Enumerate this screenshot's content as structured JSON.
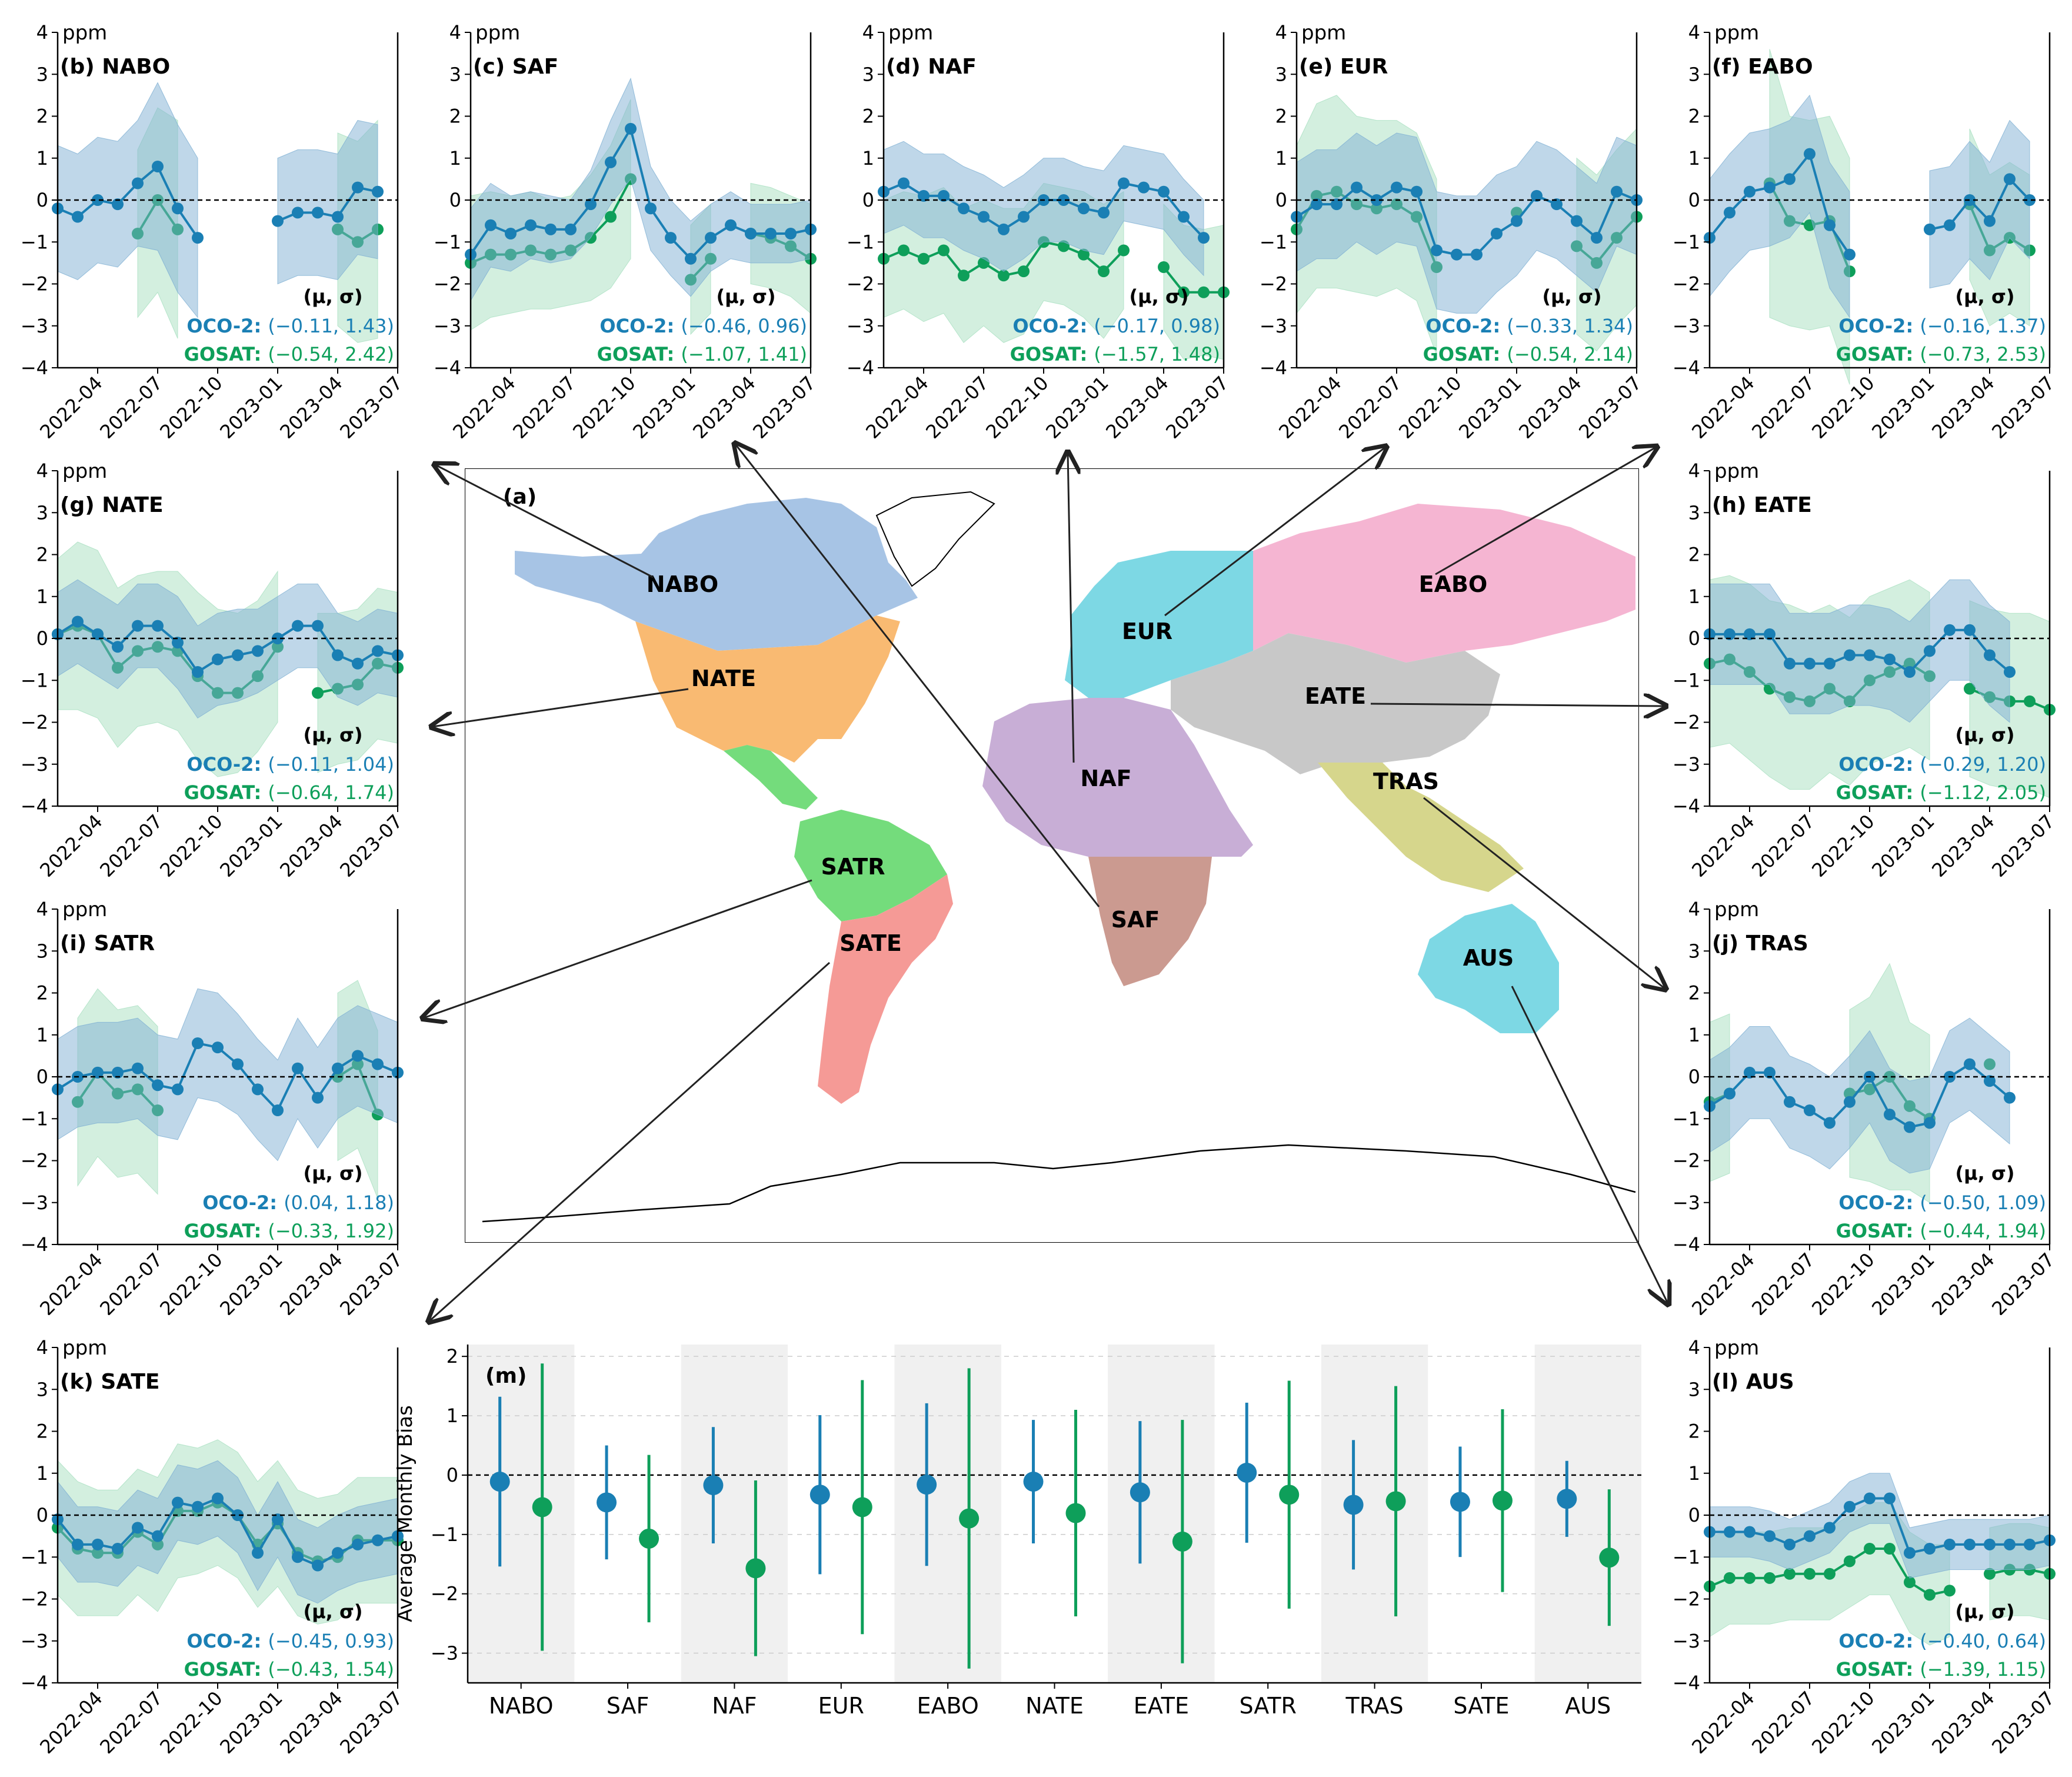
{
  "chart_data": {
    "type": "multi-panel",
    "colors": {
      "oco2": "#1a7fb4",
      "gosat": "#0e9f5a",
      "oco2_band": "#7fb0d3",
      "gosat_band": "#a8e0c0"
    },
    "time_axis": {
      "ticks": [
        "2022-04",
        "2022-07",
        "2022-10",
        "2023-01",
        "2023-04",
        "2023-07"
      ],
      "months": [
        "2022-02",
        "2022-03",
        "2022-04",
        "2022-05",
        "2022-06",
        "2022-07",
        "2022-08",
        "2022-09",
        "2022-10",
        "2022-11",
        "2022-12",
        "2023-01",
        "2023-02",
        "2023-03",
        "2023-04",
        "2023-05",
        "2023-06",
        "2023-07"
      ]
    },
    "y_unit": "ppm",
    "ylim": [
      -4,
      4
    ],
    "yticks": [
      -4,
      -3,
      -2,
      -1,
      0,
      1,
      2,
      3,
      4
    ],
    "stats_header": "(μ, σ)",
    "oco2_label": "OCO-2:",
    "gosat_label": "GOSAT:",
    "panels": [
      {
        "id": "b",
        "title": "(b) NABO",
        "oco_stat": "(−0.11, 1.43)",
        "gosat_stat": "(−0.54, 2.42)",
        "oco2": [
          -0.2,
          -0.4,
          0.0,
          -0.1,
          0.4,
          0.8,
          -0.2,
          -0.9,
          null,
          null,
          null,
          -0.5,
          -0.3,
          -0.3,
          -0.4,
          0.3,
          0.2,
          null
        ],
        "oco2_sd": [
          1.5,
          1.5,
          1.5,
          1.5,
          1.5,
          2.0,
          2.0,
          1.9,
          null,
          null,
          null,
          1.5,
          1.5,
          1.5,
          1.5,
          1.6,
          1.6,
          null
        ],
        "gosat": [
          null,
          null,
          null,
          null,
          -0.8,
          0.0,
          -0.7,
          null,
          null,
          null,
          null,
          null,
          null,
          null,
          -0.7,
          -1.0,
          -0.7,
          null
        ],
        "gosat_sd": [
          null,
          null,
          null,
          null,
          2.0,
          2.2,
          2.6,
          null,
          null,
          null,
          null,
          null,
          null,
          null,
          2.3,
          2.4,
          2.6,
          null
        ]
      },
      {
        "id": "c",
        "title": "(c) SAF",
        "oco_stat": "(−0.46, 0.96)",
        "gosat_stat": "(−1.07, 1.41)",
        "oco2": [
          -1.3,
          -0.6,
          -0.8,
          -0.6,
          -0.7,
          -0.7,
          -0.1,
          0.9,
          1.7,
          -0.2,
          -0.9,
          -1.4,
          -0.9,
          -0.6,
          -0.8,
          -0.8,
          -0.8,
          -0.7
        ],
        "oco2_sd": [
          1.1,
          1.0,
          0.9,
          0.8,
          0.8,
          0.7,
          0.8,
          1.0,
          1.2,
          1.0,
          0.9,
          0.9,
          0.8,
          0.8,
          0.7,
          0.7,
          0.7,
          0.7
        ],
        "gosat": [
          -1.5,
          -1.3,
          -1.3,
          -1.2,
          -1.3,
          -1.2,
          -0.9,
          -0.4,
          0.5,
          null,
          null,
          -1.9,
          -1.4,
          null,
          -0.8,
          -0.9,
          -1.1,
          -1.4
        ],
        "gosat_sd": [
          1.6,
          1.5,
          1.4,
          1.4,
          1.3,
          1.3,
          1.5,
          1.7,
          1.9,
          null,
          null,
          1.3,
          1.3,
          null,
          1.2,
          1.2,
          1.2,
          1.3
        ]
      },
      {
        "id": "d",
        "title": "(d) NAF",
        "oco_stat": "(−0.17, 0.98)",
        "gosat_stat": "(−1.57, 1.48)",
        "oco2": [
          0.2,
          0.4,
          0.1,
          0.1,
          -0.2,
          -0.4,
          -0.7,
          -0.4,
          0.0,
          0.0,
          -0.2,
          -0.3,
          0.4,
          0.3,
          0.2,
          -0.4,
          -0.9,
          null
        ],
        "oco2_sd": [
          1.0,
          1.0,
          1.0,
          1.0,
          1.0,
          1.0,
          1.0,
          1.0,
          1.0,
          1.0,
          1.0,
          1.0,
          0.9,
          0.9,
          0.9,
          0.9,
          0.9,
          null
        ],
        "gosat": [
          -1.4,
          -1.2,
          -1.4,
          -1.2,
          -1.8,
          -1.5,
          -1.8,
          -1.7,
          -1.0,
          -1.1,
          -1.3,
          -1.7,
          -1.2,
          null,
          -1.6,
          -2.2,
          -2.2,
          -2.2
        ],
        "gosat_sd": [
          1.4,
          1.4,
          1.5,
          1.5,
          1.6,
          1.5,
          1.6,
          1.5,
          1.4,
          1.4,
          1.5,
          1.6,
          1.4,
          null,
          1.5,
          1.6,
          1.5,
          1.6
        ]
      },
      {
        "id": "e",
        "title": "(e) EUR",
        "oco_stat": "(−0.33, 1.34)",
        "gosat_stat": "(−0.54, 2.14)",
        "oco2": [
          -0.4,
          -0.1,
          -0.1,
          0.3,
          0.0,
          0.3,
          0.2,
          -1.2,
          -1.3,
          -1.3,
          -0.8,
          -0.5,
          0.1,
          -0.1,
          -0.5,
          -0.9,
          0.2,
          0.0
        ],
        "oco2_sd": [
          1.3,
          1.3,
          1.3,
          1.3,
          1.3,
          1.3,
          1.3,
          1.4,
          1.4,
          1.4,
          1.4,
          1.3,
          1.3,
          1.3,
          1.3,
          1.3,
          1.3,
          1.3
        ],
        "gosat": [
          -0.7,
          0.1,
          0.2,
          -0.1,
          -0.2,
          -0.1,
          -0.4,
          -1.6,
          null,
          null,
          null,
          -0.3,
          null,
          null,
          -1.1,
          -1.5,
          -0.9,
          -0.4
        ],
        "gosat_sd": [
          2.0,
          2.2,
          2.3,
          2.1,
          2.1,
          2.0,
          2.0,
          2.1,
          null,
          null,
          null,
          2.5,
          null,
          null,
          2.1,
          2.1,
          2.1,
          2.1
        ]
      },
      {
        "id": "f",
        "title": "(f) EABO",
        "oco_stat": "(−0.16, 1.37)",
        "gosat_stat": "(−0.73, 2.53)",
        "oco2": [
          -0.9,
          -0.3,
          0.2,
          0.3,
          0.5,
          1.1,
          -0.6,
          -1.3,
          null,
          null,
          null,
          -0.7,
          -0.6,
          0.0,
          -0.5,
          0.5,
          0.0,
          null
        ],
        "oco2_sd": [
          1.4,
          1.4,
          1.4,
          1.4,
          1.4,
          1.4,
          1.5,
          1.5,
          null,
          null,
          null,
          1.4,
          1.4,
          1.4,
          1.4,
          1.4,
          1.4,
          null
        ],
        "gosat": [
          null,
          null,
          null,
          0.4,
          -0.5,
          -0.6,
          -0.5,
          -1.7,
          null,
          null,
          null,
          null,
          null,
          -0.1,
          -1.2,
          -0.9,
          -1.2,
          null
        ],
        "gosat_sd": [
          null,
          null,
          null,
          3.2,
          2.5,
          2.5,
          2.5,
          2.7,
          null,
          null,
          null,
          null,
          null,
          1.8,
          1.8,
          1.8,
          1.8,
          null
        ]
      },
      {
        "id": "g",
        "title": "(g) NATE",
        "oco_stat": "(−0.11, 1.04)",
        "gosat_stat": "(−0.64, 1.74)",
        "oco2": [
          0.1,
          0.4,
          0.1,
          -0.2,
          0.3,
          0.3,
          -0.1,
          -0.8,
          -0.5,
          -0.4,
          -0.3,
          0.0,
          0.3,
          0.3,
          -0.4,
          -0.6,
          -0.3,
          -0.4
        ],
        "oco2_sd": [
          1.0,
          1.0,
          1.0,
          1.0,
          1.0,
          1.0,
          1.1,
          1.1,
          1.1,
          1.1,
          1.0,
          1.0,
          1.0,
          1.0,
          1.0,
          1.0,
          1.0,
          1.0
        ],
        "gosat": [
          0.1,
          0.3,
          0.1,
          -0.7,
          -0.3,
          -0.2,
          -0.3,
          -0.9,
          -1.3,
          -1.3,
          -0.9,
          -0.2,
          null,
          -1.3,
          -1.2,
          -1.1,
          -0.6,
          -0.7
        ],
        "gosat_sd": [
          1.8,
          2.0,
          2.0,
          1.9,
          1.8,
          1.8,
          1.9,
          2.0,
          2.0,
          1.9,
          1.8,
          1.8,
          null,
          1.9,
          1.8,
          1.8,
          1.8,
          1.8
        ]
      },
      {
        "id": "h",
        "title": "(h) EATE",
        "oco_stat": "(−0.29, 1.20)",
        "gosat_stat": "(−1.12, 2.05)",
        "oco2": [
          0.1,
          0.1,
          0.1,
          0.1,
          -0.6,
          -0.6,
          -0.6,
          -0.4,
          -0.4,
          -0.5,
          -0.8,
          -0.3,
          0.2,
          0.2,
          -0.4,
          -0.8,
          null,
          null
        ],
        "oco2_sd": [
          1.2,
          1.2,
          1.2,
          1.2,
          1.2,
          1.2,
          1.2,
          1.2,
          1.2,
          1.2,
          1.2,
          1.2,
          1.2,
          1.2,
          1.2,
          1.2,
          null,
          null
        ],
        "gosat": [
          -0.6,
          -0.5,
          -0.8,
          -1.2,
          -1.4,
          -1.5,
          -1.2,
          -1.5,
          -1.0,
          -0.8,
          -0.6,
          -0.9,
          null,
          -1.2,
          -1.4,
          -1.5,
          -1.5,
          -1.7
        ],
        "gosat_sd": [
          2.0,
          2.0,
          2.1,
          2.1,
          2.2,
          2.1,
          2.0,
          2.0,
          2.0,
          2.0,
          2.0,
          2.0,
          null,
          2.1,
          2.1,
          2.1,
          2.1,
          2.1
        ]
      },
      {
        "id": "i",
        "title": "(i) SATR",
        "oco_stat": "(0.04, 1.18)",
        "gosat_stat": "(−0.33, 1.92)",
        "oco2": [
          -0.3,
          0.0,
          0.1,
          0.1,
          0.2,
          -0.2,
          -0.3,
          0.8,
          0.7,
          0.3,
          -0.3,
          -0.8,
          0.2,
          -0.5,
          0.2,
          0.5,
          0.3,
          0.1
        ],
        "oco2_sd": [
          1.2,
          1.2,
          1.2,
          1.2,
          1.2,
          1.2,
          1.2,
          1.3,
          1.3,
          1.2,
          1.2,
          1.2,
          1.2,
          1.2,
          1.2,
          1.2,
          1.2,
          1.2
        ],
        "gosat": [
          null,
          -0.6,
          0.1,
          -0.4,
          -0.3,
          -0.8,
          null,
          null,
          null,
          null,
          null,
          null,
          null,
          null,
          0.0,
          0.3,
          -0.9,
          null
        ],
        "gosat_sd": [
          null,
          2.0,
          2.0,
          2.0,
          2.0,
          2.0,
          null,
          null,
          null,
          null,
          null,
          null,
          null,
          null,
          2.0,
          2.0,
          2.0,
          null
        ]
      },
      {
        "id": "j",
        "title": "(j) TRAS",
        "oco_stat": "(−0.50, 1.09)",
        "gosat_stat": "(−0.44, 1.94)",
        "oco2": [
          -0.7,
          -0.4,
          0.1,
          0.1,
          -0.6,
          -0.8,
          -1.1,
          -0.6,
          0.0,
          -0.9,
          -1.2,
          -1.1,
          0.0,
          0.3,
          -0.1,
          -0.5,
          null,
          null
        ],
        "oco2_sd": [
          1.1,
          1.1,
          1.1,
          1.1,
          1.1,
          1.1,
          1.1,
          1.1,
          1.1,
          1.1,
          1.1,
          1.1,
          1.1,
          1.1,
          1.1,
          1.1,
          null,
          null
        ],
        "gosat": [
          -0.6,
          -0.4,
          null,
          null,
          null,
          null,
          null,
          -0.4,
          -0.3,
          0.0,
          -0.7,
          -1.0,
          null,
          null,
          0.3,
          null,
          null,
          null
        ],
        "gosat_sd": [
          1.9,
          1.9,
          null,
          null,
          null,
          null,
          null,
          2.0,
          2.2,
          2.7,
          2.0,
          2.0,
          null,
          null,
          1.9,
          null,
          null,
          null
        ]
      },
      {
        "id": "k",
        "title": "(k) SATE",
        "oco_stat": "(−0.45, 0.93)",
        "gosat_stat": "(−0.43, 1.54)",
        "oco2": [
          -0.1,
          -0.7,
          -0.7,
          -0.8,
          -0.3,
          -0.5,
          0.3,
          0.2,
          0.4,
          0.0,
          -0.9,
          -0.1,
          -1.0,
          -1.2,
          -0.9,
          -0.7,
          -0.6,
          -0.5
        ],
        "oco2_sd": [
          0.9,
          0.9,
          0.9,
          0.9,
          0.9,
          0.9,
          0.9,
          0.9,
          0.9,
          0.9,
          0.9,
          0.9,
          0.9,
          0.9,
          0.9,
          0.9,
          0.9,
          0.9
        ],
        "gosat": [
          -0.3,
          -0.8,
          -0.9,
          -0.9,
          -0.4,
          -0.7,
          0.1,
          0.1,
          0.3,
          0.0,
          -0.7,
          -0.2,
          -0.9,
          -1.1,
          -1.0,
          -0.6,
          -0.6,
          -0.6
        ],
        "gosat_sd": [
          1.6,
          1.6,
          1.5,
          1.5,
          1.5,
          1.6,
          1.6,
          1.5,
          1.5,
          1.5,
          1.5,
          1.5,
          1.5,
          1.5,
          1.5,
          1.5,
          1.5,
          1.5
        ]
      },
      {
        "id": "l",
        "title": "(l) AUS",
        "oco_stat": "(−0.40, 0.64)",
        "gosat_stat": "(−1.39, 1.15)",
        "oco2": [
          -0.4,
          -0.4,
          -0.4,
          -0.5,
          -0.7,
          -0.5,
          -0.3,
          0.2,
          0.4,
          0.4,
          -0.9,
          -0.8,
          -0.7,
          -0.7,
          -0.7,
          -0.7,
          -0.7,
          -0.6
        ],
        "oco2_sd": [
          0.6,
          0.6,
          0.6,
          0.6,
          0.6,
          0.6,
          0.6,
          0.6,
          0.6,
          0.6,
          0.6,
          0.6,
          0.6,
          0.6,
          0.6,
          0.6,
          0.6,
          0.6
        ],
        "gosat": [
          -1.7,
          -1.5,
          -1.5,
          -1.5,
          -1.4,
          -1.4,
          -1.4,
          -1.1,
          -0.8,
          -0.8,
          -1.6,
          -1.9,
          -1.8,
          null,
          -1.4,
          -1.3,
          -1.3,
          -1.4
        ],
        "gosat_sd": [
          1.2,
          1.1,
          1.1,
          1.1,
          1.1,
          1.1,
          1.1,
          1.1,
          1.1,
          1.1,
          1.2,
          1.2,
          1.1,
          null,
          1.1,
          1.1,
          1.1,
          1.1
        ]
      }
    ],
    "map": {
      "title": "(a)",
      "regions": [
        {
          "code": "NABO",
          "color": "#a7c4e5"
        },
        {
          "code": "NATE",
          "color": "#f9ba72"
        },
        {
          "code": "SATR",
          "color": "#74dc7c"
        },
        {
          "code": "SATE",
          "color": "#f59a96"
        },
        {
          "code": "EUR",
          "color": "#7dd8e4"
        },
        {
          "code": "NAF",
          "color": "#c8aed6"
        },
        {
          "code": "SAF",
          "color": "#cb9a90"
        },
        {
          "code": "EABO",
          "color": "#f5b5d2"
        },
        {
          "code": "EATE",
          "color": "#c8c8c8"
        },
        {
          "code": "TRAS",
          "color": "#d6d68c"
        },
        {
          "code": "AUS",
          "color": "#7dd8e4"
        }
      ]
    },
    "summary": {
      "title": "(m)",
      "ylabel": "Average Monthly Bias",
      "ylim": [
        -3.5,
        2.2
      ],
      "yticks": [
        -3,
        -2,
        -1,
        0,
        1,
        2
      ],
      "categories": [
        "NABO",
        "SAF",
        "NAF",
        "EUR",
        "EABO",
        "NATE",
        "EATE",
        "SATR",
        "TRAS",
        "SATE",
        "AUS"
      ],
      "series": [
        {
          "name": "OCO-2",
          "mean": [
            -0.11,
            -0.46,
            -0.17,
            -0.33,
            -0.16,
            -0.11,
            -0.29,
            0.04,
            -0.5,
            -0.45,
            -0.4
          ],
          "sd": [
            1.43,
            0.96,
            0.98,
            1.34,
            1.37,
            1.04,
            1.2,
            1.18,
            1.09,
            0.93,
            0.64
          ]
        },
        {
          "name": "GOSAT",
          "mean": [
            -0.54,
            -1.07,
            -1.57,
            -0.54,
            -0.73,
            -0.64,
            -1.12,
            -0.33,
            -0.44,
            -0.43,
            -1.39
          ],
          "sd": [
            2.42,
            1.41,
            1.48,
            2.14,
            2.53,
            1.74,
            2.05,
            1.92,
            1.94,
            1.54,
            1.15
          ]
        }
      ]
    }
  }
}
